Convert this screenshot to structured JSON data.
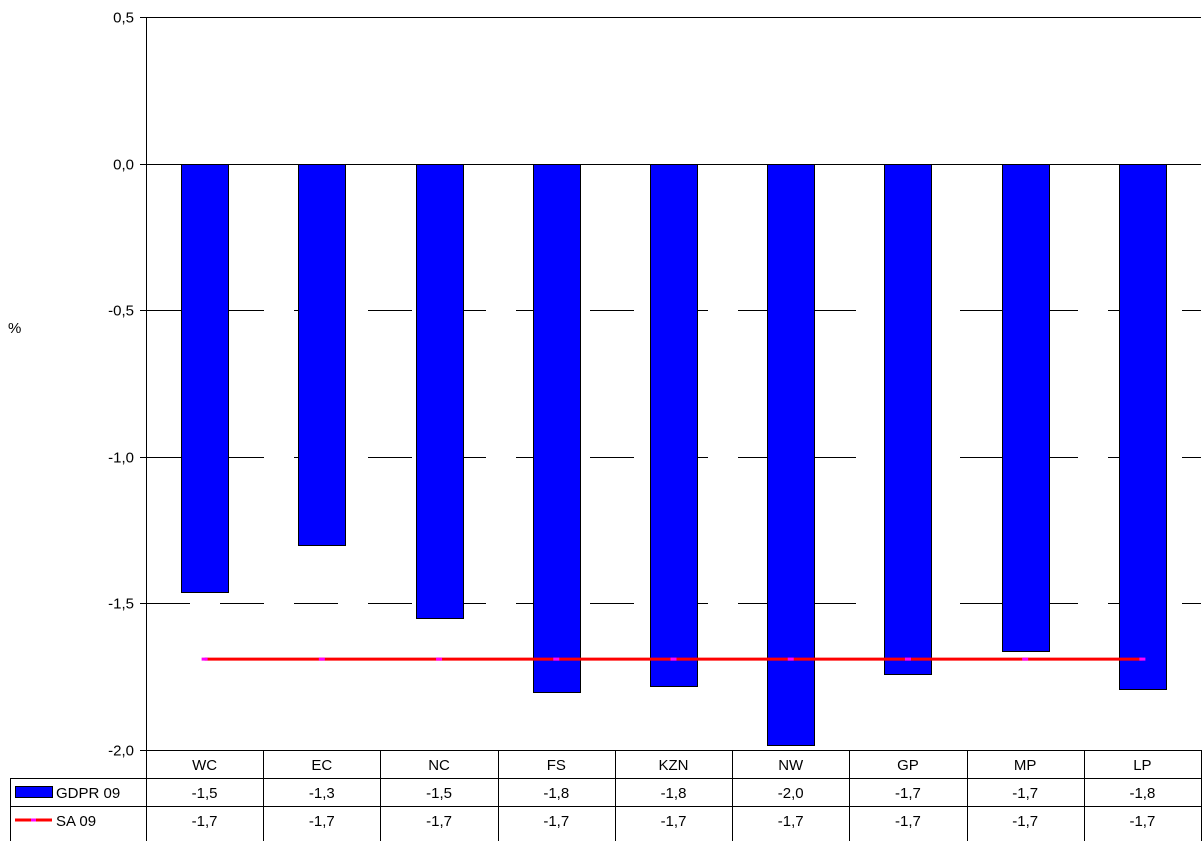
{
  "chart_data": {
    "type": "bar",
    "ylabel": "%",
    "ylim": [
      -2.0,
      0.5
    ],
    "yticks": [
      0.5,
      0.0,
      -0.5,
      -1.0,
      -1.5,
      -2.0
    ],
    "ytick_labels": [
      "0,5",
      "0,0",
      "-0,5",
      "-1,0",
      "-1,5",
      "-2,0"
    ],
    "grid": true,
    "categories": [
      "WC",
      "EC",
      "NC",
      "FS",
      "KZN",
      "NW",
      "GP",
      "MP",
      "LP"
    ],
    "series": [
      {
        "name": "GDPR 09",
        "kind": "bar",
        "color": "#0000ff",
        "values": [
          -1.46,
          -1.3,
          -1.55,
          -1.8,
          -1.78,
          -1.98,
          -1.74,
          -1.66,
          -1.79
        ],
        "display": [
          "-1,5",
          "-1,3",
          "-1,5",
          "-1,8",
          "-1,8",
          "-2,0",
          "-1,7",
          "-1,7",
          "-1,8"
        ]
      },
      {
        "name": "SA 09",
        "kind": "line",
        "color": "#ff0000",
        "marker_color": "#ff00ff",
        "values": [
          -1.69,
          -1.69,
          -1.69,
          -1.69,
          -1.69,
          -1.69,
          -1.69,
          -1.69,
          -1.69
        ],
        "display": [
          "-1,7",
          "-1,7",
          "-1,7",
          "-1,7",
          "-1,7",
          "-1,7",
          "-1,7",
          "-1,7",
          "-1,7"
        ]
      }
    ]
  }
}
